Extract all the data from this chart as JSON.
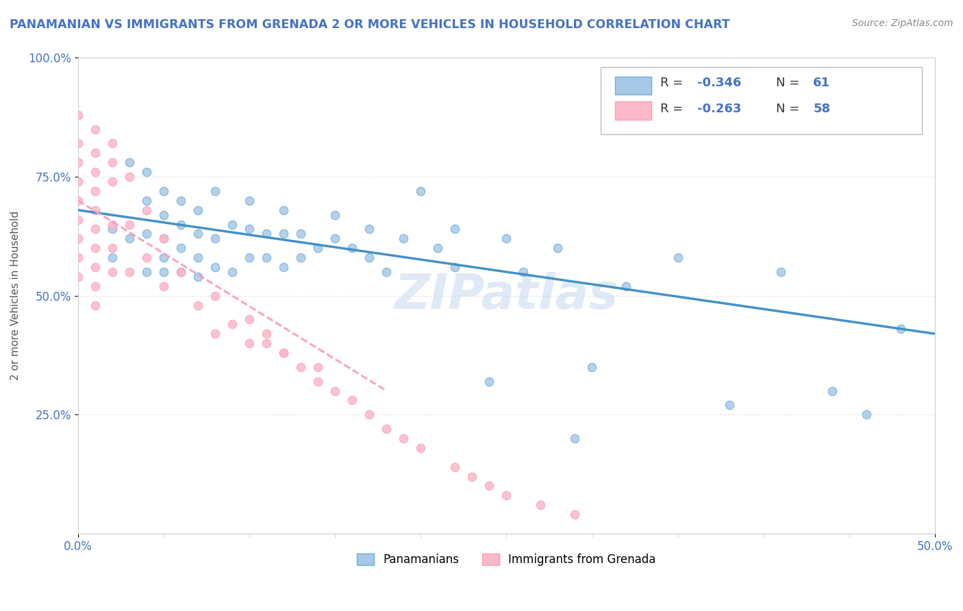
{
  "title": "PANAMANIAN VS IMMIGRANTS FROM GRENADA 2 OR MORE VEHICLES IN HOUSEHOLD CORRELATION CHART",
  "source_text": "Source: ZipAtlas.com",
  "ylabel": "2 or more Vehicles in Household",
  "xlim": [
    0.0,
    0.5
  ],
  "ylim": [
    0.0,
    1.0
  ],
  "blue_color": "#6baed6",
  "pink_color": "#fa9fb5",
  "blue_scatter_color": "#a8c8e8",
  "pink_scatter_color": "#fcb8cb",
  "line_blue": "#4292c6",
  "line_pink": "#f768a1",
  "watermark": "ZIPatlas",
  "blue_points_x": [
    0.02,
    0.02,
    0.03,
    0.03,
    0.04,
    0.04,
    0.04,
    0.04,
    0.05,
    0.05,
    0.05,
    0.05,
    0.05,
    0.06,
    0.06,
    0.06,
    0.06,
    0.07,
    0.07,
    0.07,
    0.07,
    0.08,
    0.08,
    0.08,
    0.09,
    0.09,
    0.1,
    0.1,
    0.1,
    0.11,
    0.11,
    0.12,
    0.12,
    0.12,
    0.13,
    0.13,
    0.14,
    0.15,
    0.15,
    0.16,
    0.17,
    0.17,
    0.18,
    0.19,
    0.2,
    0.21,
    0.22,
    0.22,
    0.24,
    0.25,
    0.26,
    0.28,
    0.29,
    0.3,
    0.32,
    0.35,
    0.38,
    0.41,
    0.44,
    0.46,
    0.48
  ],
  "blue_points_y": [
    0.58,
    0.64,
    0.62,
    0.78,
    0.55,
    0.63,
    0.7,
    0.76,
    0.55,
    0.58,
    0.62,
    0.67,
    0.72,
    0.55,
    0.6,
    0.65,
    0.7,
    0.54,
    0.58,
    0.63,
    0.68,
    0.56,
    0.62,
    0.72,
    0.55,
    0.65,
    0.58,
    0.64,
    0.7,
    0.58,
    0.63,
    0.56,
    0.63,
    0.68,
    0.58,
    0.63,
    0.6,
    0.62,
    0.67,
    0.6,
    0.58,
    0.64,
    0.55,
    0.62,
    0.72,
    0.6,
    0.56,
    0.64,
    0.32,
    0.62,
    0.55,
    0.6,
    0.2,
    0.35,
    0.52,
    0.58,
    0.27,
    0.55,
    0.3,
    0.25,
    0.43
  ],
  "pink_points_x": [
    0.0,
    0.0,
    0.0,
    0.0,
    0.0,
    0.0,
    0.0,
    0.0,
    0.0,
    0.01,
    0.01,
    0.01,
    0.01,
    0.01,
    0.01,
    0.01,
    0.01,
    0.01,
    0.01,
    0.02,
    0.02,
    0.02,
    0.02,
    0.02,
    0.02,
    0.03,
    0.03,
    0.03,
    0.04,
    0.04,
    0.05,
    0.05,
    0.06,
    0.07,
    0.08,
    0.08,
    0.09,
    0.1,
    0.11,
    0.12,
    0.13,
    0.14,
    0.15,
    0.16,
    0.17,
    0.18,
    0.19,
    0.2,
    0.22,
    0.23,
    0.24,
    0.25,
    0.27,
    0.29,
    0.1,
    0.11,
    0.12,
    0.14
  ],
  "pink_points_y": [
    0.88,
    0.82,
    0.78,
    0.74,
    0.7,
    0.66,
    0.62,
    0.58,
    0.54,
    0.85,
    0.8,
    0.76,
    0.72,
    0.68,
    0.64,
    0.6,
    0.56,
    0.52,
    0.48,
    0.82,
    0.78,
    0.74,
    0.65,
    0.6,
    0.55,
    0.75,
    0.65,
    0.55,
    0.68,
    0.58,
    0.62,
    0.52,
    0.55,
    0.48,
    0.5,
    0.42,
    0.44,
    0.4,
    0.4,
    0.38,
    0.35,
    0.32,
    0.3,
    0.28,
    0.25,
    0.22,
    0.2,
    0.18,
    0.14,
    0.12,
    0.1,
    0.08,
    0.06,
    0.04,
    0.45,
    0.42,
    0.38,
    0.35
  ],
  "blue_trend_x": [
    0.0,
    0.5
  ],
  "blue_trend_y": [
    0.68,
    0.42
  ],
  "pink_trend_x": [
    0.0,
    0.18
  ],
  "pink_trend_y": [
    0.7,
    0.3
  ],
  "grid_color": "#dddddd",
  "background_color": "#ffffff",
  "accent_color": "#4472c4",
  "label_color": "#555555",
  "source_color": "#888888"
}
